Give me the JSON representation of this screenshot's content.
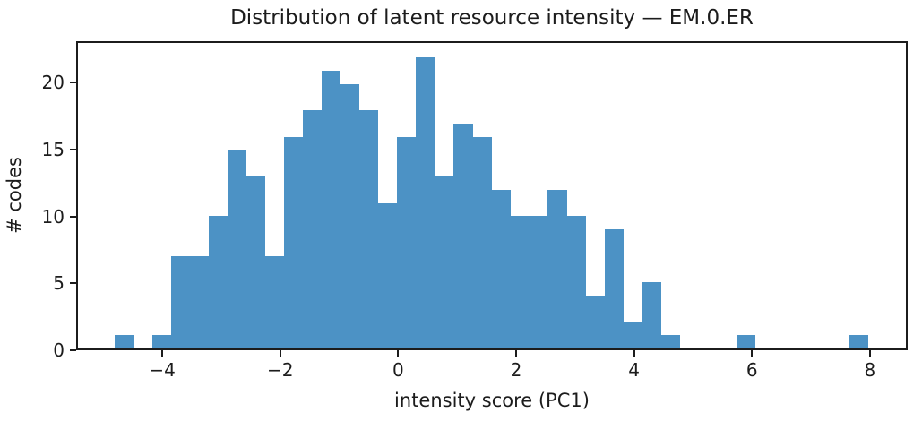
{
  "figure": {
    "title": "Distribution of latent resource intensity — EM.0.ER",
    "xlabel": "intensity score (PC1)",
    "ylabel": "# codes"
  },
  "chart_data": {
    "type": "bar",
    "subtype": "histogram",
    "title": "Distribution of latent resource intensity — EM.0.ER",
    "xlabel": "intensity score (PC1)",
    "ylabel": "# codes",
    "bar_color": "#4c92c5",
    "text_color": "#1c1c1c",
    "bin_start": -4.84,
    "bin_width": 0.321,
    "counts": [
      1,
      0,
      1,
      7,
      7,
      10,
      15,
      13,
      7,
      16,
      18,
      21,
      20,
      18,
      11,
      16,
      22,
      13,
      17,
      16,
      12,
      10,
      10,
      12,
      10,
      4,
      9,
      2,
      5,
      1,
      0,
      0,
      0,
      1,
      0,
      0,
      0,
      0,
      0,
      1
    ],
    "total_count": 326,
    "max_count": 22,
    "xlim": [
      -5.46,
      8.64
    ],
    "ylim": [
      0,
      23.1
    ],
    "xticks": {
      "values": [
        -4,
        -2,
        0,
        2,
        4,
        6,
        8
      ],
      "labels": [
        "−4",
        "−2",
        "0",
        "2",
        "4",
        "6",
        "8"
      ]
    },
    "yticks": {
      "values": [
        0,
        5,
        10,
        15,
        20
      ],
      "labels": [
        "0",
        "5",
        "10",
        "15",
        "20"
      ]
    },
    "grid": false,
    "legend": null
  }
}
